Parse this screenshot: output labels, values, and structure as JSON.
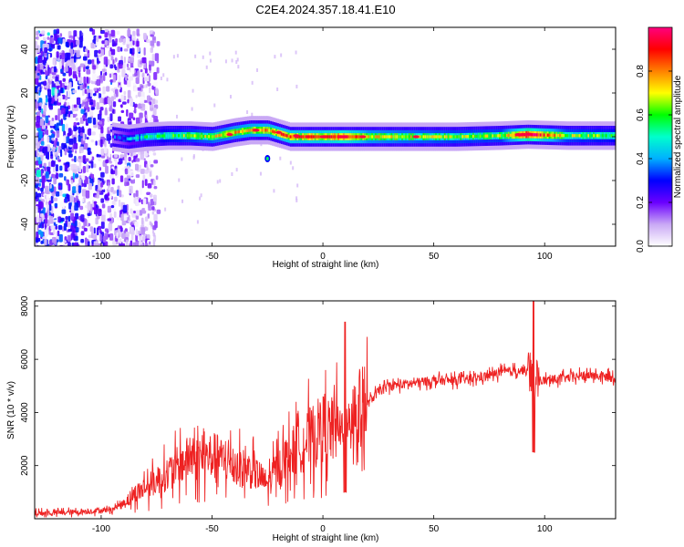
{
  "title": "C2E4.2024.357.18.41.E10",
  "chart_data": [
    {
      "type": "heatmap",
      "xlabel": "Height of straight line (km)",
      "ylabel": "Frequency (Hz)",
      "xlim": [
        -130,
        132
      ],
      "ylim": [
        -50,
        50
      ],
      "xticks": [
        -100,
        -50,
        0,
        50,
        100
      ],
      "yticks": [
        -40,
        -20,
        0,
        20,
        40
      ],
      "colorbar": {
        "label": "Normalized spectral amplitude",
        "range": [
          0,
          1
        ],
        "ticks": [
          0.0,
          0.2,
          0.4,
          0.6,
          0.8
        ],
        "colors": [
          "#ffffff",
          "#c9a8f5",
          "#6a00ff",
          "#0000ff",
          "#00b0ff",
          "#00ffcc",
          "#00ff00",
          "#ffff00",
          "#ff8000",
          "#ff0000",
          "#ff0080"
        ]
      },
      "noise_region_x": [
        -130,
        -75
      ],
      "ridge": [
        {
          "x": -95,
          "y": 0,
          "amp": 0.25
        },
        {
          "x": -88,
          "y": -1,
          "amp": 0.35
        },
        {
          "x": -80,
          "y": 0,
          "amp": 0.45
        },
        {
          "x": -70,
          "y": 0.5,
          "amp": 0.55
        },
        {
          "x": -60,
          "y": 0.5,
          "amp": 0.6
        },
        {
          "x": -50,
          "y": 0,
          "amp": 0.65
        },
        {
          "x": -40,
          "y": 2,
          "amp": 0.7
        },
        {
          "x": -33,
          "y": 3,
          "amp": 0.72
        },
        {
          "x": -25,
          "y": 3,
          "amp": 0.75
        },
        {
          "x": -15,
          "y": 0,
          "amp": 0.8
        },
        {
          "x": 0,
          "y": 0,
          "amp": 0.82
        },
        {
          "x": 10,
          "y": 0,
          "amp": 0.88
        },
        {
          "x": 20,
          "y": 0,
          "amp": 0.7
        },
        {
          "x": 40,
          "y": 0,
          "amp": 0.65
        },
        {
          "x": 60,
          "y": 0,
          "amp": 0.6
        },
        {
          "x": 80,
          "y": 0.5,
          "amp": 0.6
        },
        {
          "x": 92,
          "y": 1,
          "amp": 0.95
        },
        {
          "x": 110,
          "y": 0.5,
          "amp": 0.6
        },
        {
          "x": 132,
          "y": 0.5,
          "amp": 0.55
        }
      ],
      "secondary_blob": {
        "x": -25,
        "y": -10
      }
    },
    {
      "type": "line",
      "xlabel": "Height of straight line (km)",
      "ylabel": "SNR (10 * v/v)",
      "xlim": [
        -130,
        132
      ],
      "ylim": [
        0,
        8200
      ],
      "xticks": [
        -100,
        -50,
        0,
        50,
        100
      ],
      "yticks": [
        2000,
        4000,
        6000,
        8000
      ],
      "color": "#ee2222",
      "series": [
        {
          "x": [
            -130,
            -110,
            -95,
            -90,
            -85,
            -80,
            -75,
            -70,
            -65,
            -60,
            -55,
            -50,
            -45,
            -40,
            -35,
            -30,
            -25,
            -20,
            -15,
            -10,
            -5,
            0,
            5,
            8,
            10,
            12,
            15,
            20,
            25,
            30,
            40,
            50,
            60,
            70,
            80,
            90,
            93,
            95,
            97,
            100,
            110,
            120,
            132
          ],
          "y": [
            200,
            250,
            350,
            600,
            900,
            1200,
            1400,
            1700,
            2000,
            2300,
            2200,
            2400,
            2200,
            2000,
            1900,
            1700,
            1300,
            2000,
            2400,
            2800,
            3100,
            3400,
            3300,
            3500,
            3600,
            3700,
            4000,
            4300,
            4800,
            5000,
            5100,
            5200,
            5200,
            5300,
            5500,
            5600,
            5500,
            5400,
            5200,
            5200,
            5300,
            5400,
            5300
          ]
        }
      ],
      "spikes": [
        {
          "x": 10,
          "high": 7400,
          "low": 1000
        },
        {
          "x": 95,
          "high": 8200,
          "low": 2500
        }
      ]
    }
  ]
}
